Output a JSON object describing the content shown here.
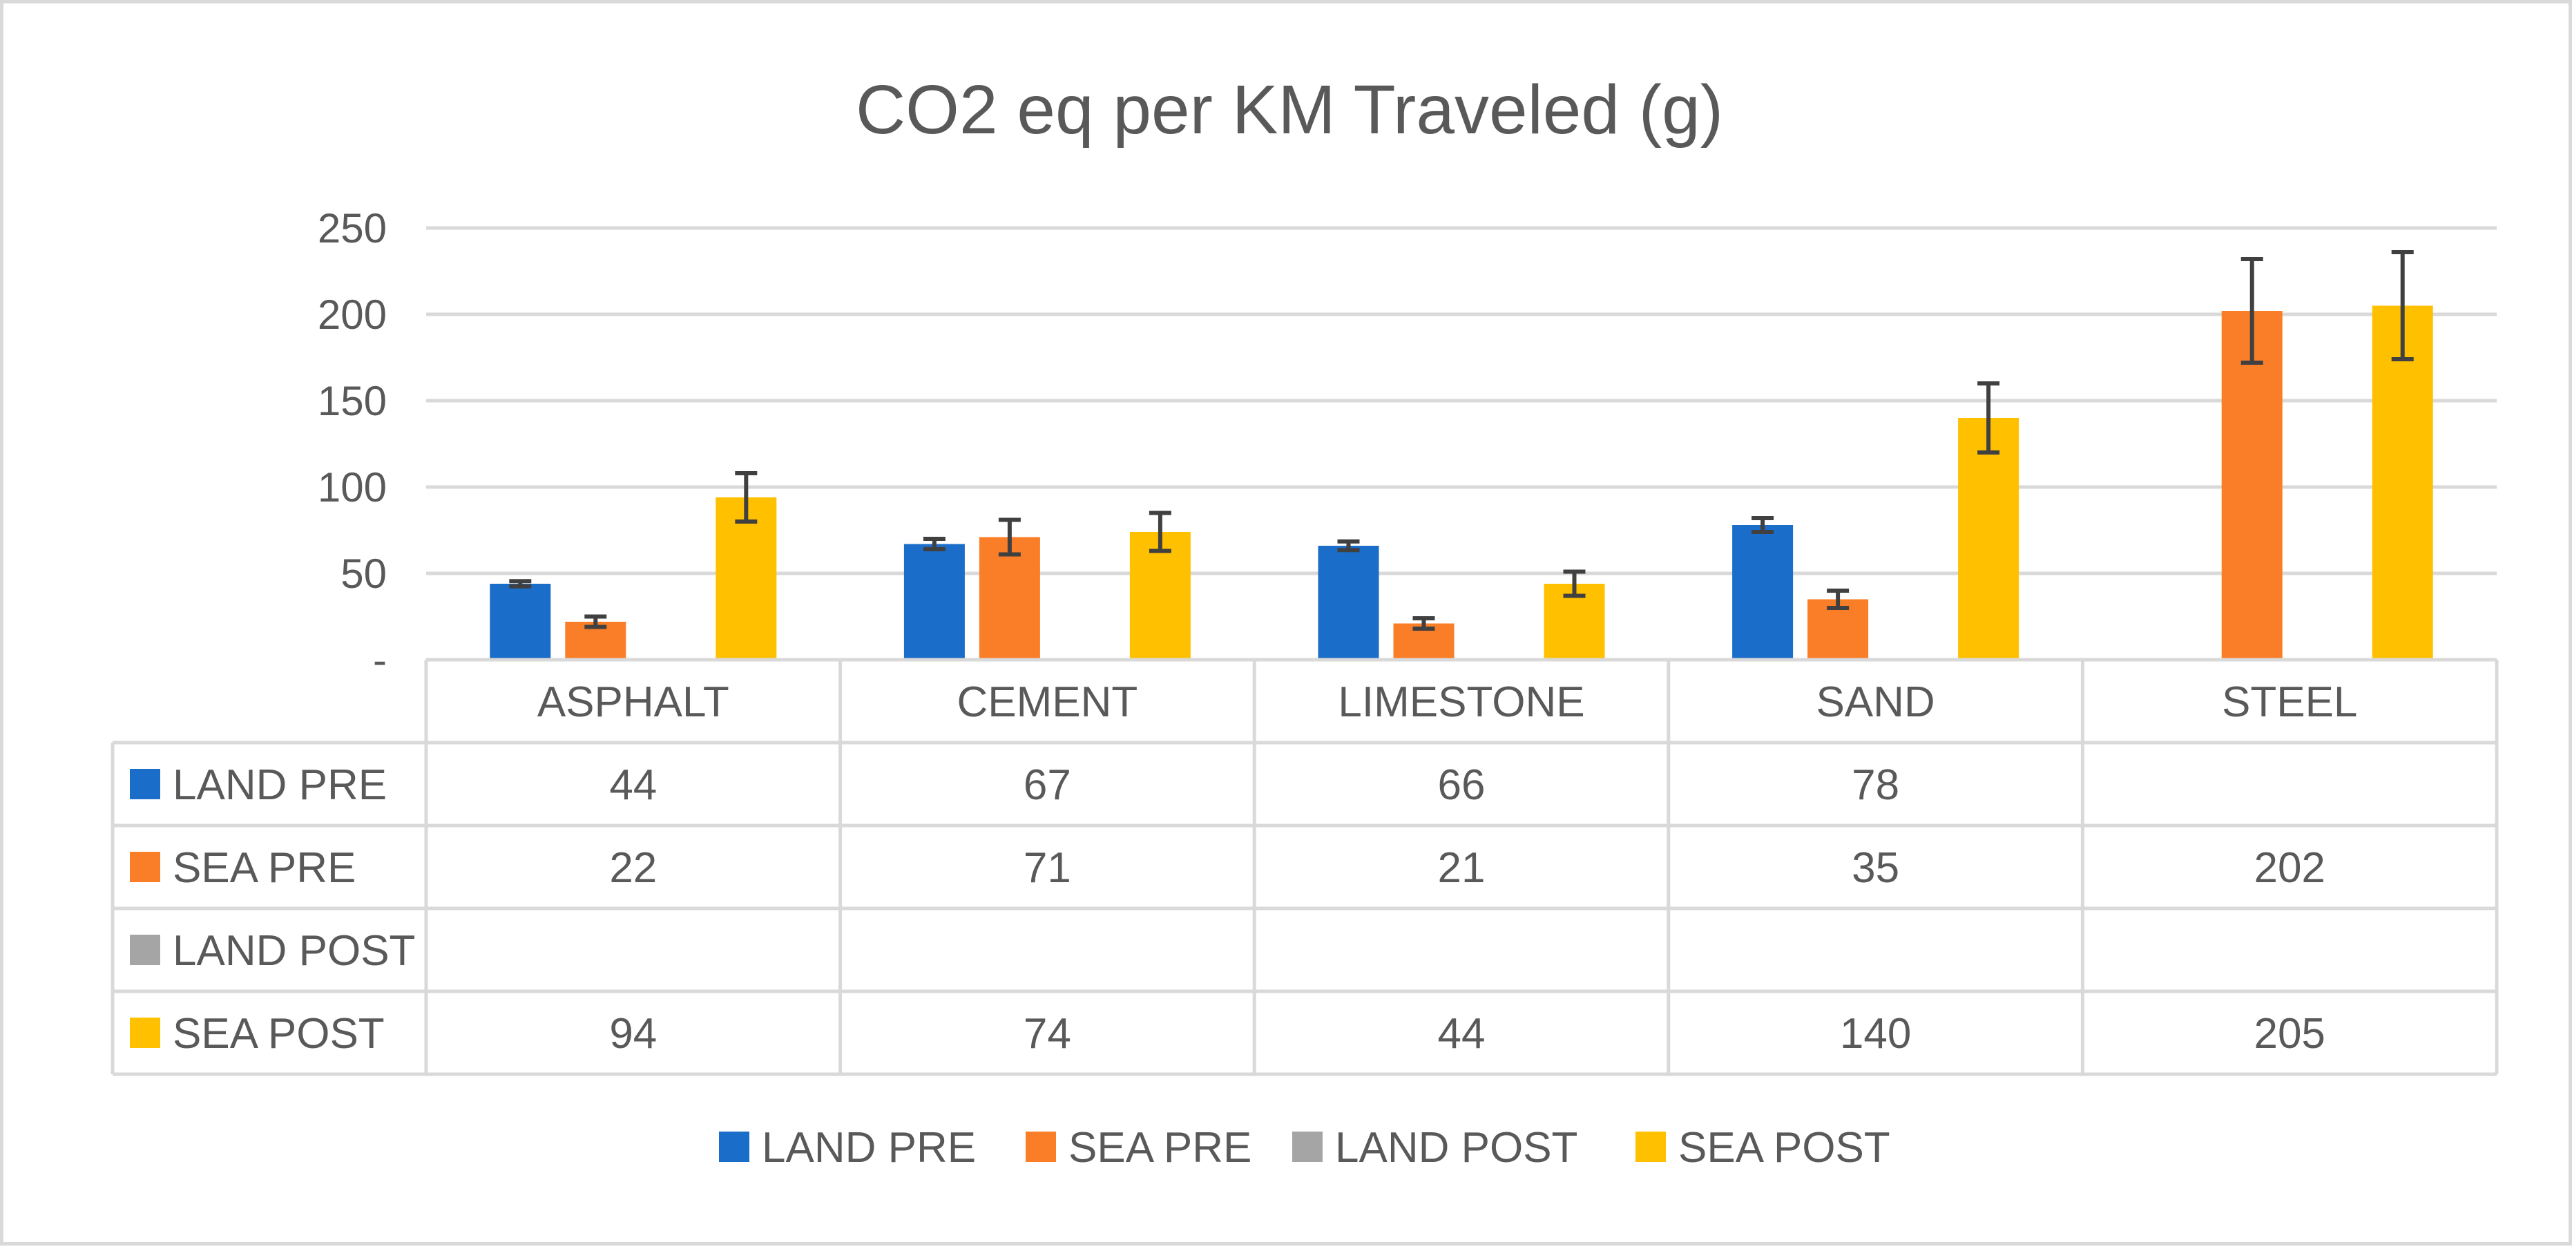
{
  "chart_data": {
    "type": "bar",
    "title": "CO2 eq per KM Traveled (g)",
    "xlabel": "",
    "ylabel": "",
    "ylim": [
      0,
      250
    ],
    "yticks": [
      {
        "value": 0,
        "label": "-"
      },
      {
        "value": 50,
        "label": "50"
      },
      {
        "value": 100,
        "label": "100"
      },
      {
        "value": 150,
        "label": "150"
      },
      {
        "value": 200,
        "label": "200"
      },
      {
        "value": 250,
        "label": "250"
      }
    ],
    "grid": true,
    "categories": [
      "ASPHALT",
      "CEMENT",
      "LIMESTONE",
      "SAND",
      "STEEL"
    ],
    "series": [
      {
        "name": "LAND PRE",
        "color": "#1a6dc8",
        "values": [
          44,
          67,
          66,
          78,
          null
        ],
        "errors": [
          1.5,
          3,
          2.5,
          4,
          null
        ]
      },
      {
        "name": "SEA PRE",
        "color": "#f97e27",
        "values": [
          22,
          71,
          21,
          35,
          202
        ],
        "errors": [
          3,
          10,
          3,
          5,
          30
        ]
      },
      {
        "name": "LAND POST",
        "color": "#a5a5a5",
        "values": [
          null,
          null,
          null,
          null,
          null
        ],
        "errors": [
          null,
          null,
          null,
          null,
          null
        ]
      },
      {
        "name": "SEA POST",
        "color": "#ffc000",
        "values": [
          94,
          74,
          44,
          140,
          205
        ],
        "errors": [
          14,
          11,
          7,
          20,
          31
        ]
      }
    ],
    "data_table": true,
    "legend": "bottom"
  }
}
